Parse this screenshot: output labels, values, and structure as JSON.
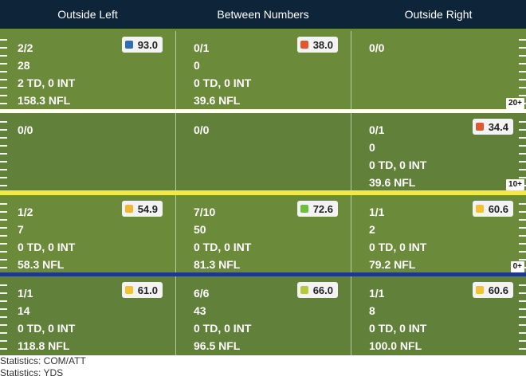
{
  "columns": [
    "Outside Left",
    "Between Numbers",
    "Outside Right"
  ],
  "rows": [
    {
      "yard_label": "20+",
      "divider_color": "#ffffff",
      "cells": [
        {
          "comp_att": "2/2",
          "yards": "28",
          "td_int": "2 TD, 0 INT",
          "rating": "158.3 NFL",
          "grade": "93.0",
          "grade_color": "#2f6db5"
        },
        {
          "comp_att": "0/1",
          "yards": "0",
          "td_int": "0 TD, 0 INT",
          "rating": "39.6 NFL",
          "grade": "38.0",
          "grade_color": "#e4572e"
        },
        {
          "comp_att": "0/0",
          "yards": "",
          "td_int": "",
          "rating": "",
          "grade": "",
          "grade_color": ""
        }
      ]
    },
    {
      "yard_label": "10+",
      "divider_color": "#f2e84a",
      "cells": [
        {
          "comp_att": "0/0",
          "yards": "",
          "td_int": "",
          "rating": "",
          "grade": "",
          "grade_color": ""
        },
        {
          "comp_att": "0/0",
          "yards": "",
          "td_int": "",
          "rating": "",
          "grade": "",
          "grade_color": ""
        },
        {
          "comp_att": "0/1",
          "yards": "0",
          "td_int": "0 TD, 0 INT",
          "rating": "39.6 NFL",
          "grade": "34.4",
          "grade_color": "#e4572e"
        }
      ]
    },
    {
      "yard_label": "0+",
      "divider_color": "#1c3a8c",
      "cells": [
        {
          "comp_att": "1/2",
          "yards": "7",
          "td_int": "0 TD, 0 INT",
          "rating": "58.3 NFL",
          "grade": "54.9",
          "grade_color": "#f2b632"
        },
        {
          "comp_att": "7/10",
          "yards": "50",
          "td_int": "0 TD, 0 INT",
          "rating": "81.3 NFL",
          "grade": "72.6",
          "grade_color": "#6cbf3a"
        },
        {
          "comp_att": "1/1",
          "yards": "2",
          "td_int": "0 TD, 0 INT",
          "rating": "79.2 NFL",
          "grade": "60.6",
          "grade_color": "#f2c232"
        }
      ]
    },
    {
      "yard_label": "",
      "divider_color": "",
      "cells": [
        {
          "comp_att": "1/1",
          "yards": "14",
          "td_int": "0 TD, 0 INT",
          "rating": "118.8 NFL",
          "grade": "61.0",
          "grade_color": "#f2c232"
        },
        {
          "comp_att": "6/6",
          "yards": "43",
          "td_int": "0 TD, 0 INT",
          "rating": "96.5 NFL",
          "grade": "66.0",
          "grade_color": "#b5c93a"
        },
        {
          "comp_att": "1/1",
          "yards": "8",
          "td_int": "0 TD, 0 INT",
          "rating": "100.0 NFL",
          "grade": "60.6",
          "grade_color": "#f2c232"
        }
      ]
    }
  ],
  "footer": {
    "line1": "Statistics: COM/ATT",
    "line2": "Statistics: YDS"
  }
}
